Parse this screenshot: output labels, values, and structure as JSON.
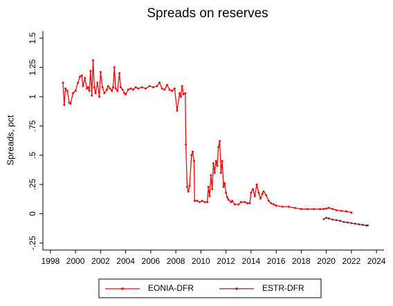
{
  "chart_data": {
    "type": "line",
    "title": "Spreads on reserves",
    "y_label": "Spreads, pct",
    "xlim": [
      1997.4,
      2024.6
    ],
    "ylim": [
      -0.31,
      1.56
    ],
    "xticks": [
      1998,
      2000,
      2002,
      2004,
      2006,
      2008,
      2010,
      2012,
      2014,
      2016,
      2018,
      2020,
      2022,
      2024
    ],
    "yticks": [
      {
        "value": -0.25,
        "label": "-.25"
      },
      0,
      {
        "value": 0.25,
        "label": ".25"
      },
      {
        "value": 0.5,
        "label": ".5"
      },
      {
        "value": 0.75,
        "label": ".75"
      },
      1,
      1.25,
      1.5
    ],
    "series": [
      {
        "name": "EONIA-DFR",
        "color": "#ff0000",
        "x": [
          1999.0,
          1999.1,
          1999.2,
          1999.35,
          1999.5,
          1999.6,
          1999.8,
          2000.0,
          2000.2,
          2000.35,
          2000.5,
          2000.6,
          2000.75,
          2000.9,
          2001.0,
          2001.1,
          2001.2,
          2001.3,
          2001.4,
          2001.5,
          2001.6,
          2001.75,
          2001.9,
          2002.0,
          2002.15,
          2002.3,
          2002.5,
          2002.6,
          2002.75,
          2002.9,
          2003.0,
          2003.1,
          2003.2,
          2003.35,
          2003.5,
          2003.6,
          2003.75,
          2003.9,
          2004.0,
          2004.2,
          2004.4,
          2004.6,
          2004.8,
          2005.0,
          2005.3,
          2005.6,
          2005.9,
          2006.2,
          2006.5,
          2006.7,
          2006.9,
          2007.1,
          2007.3,
          2007.5,
          2007.7,
          2007.9,
          2008.1,
          2008.3,
          2008.4,
          2008.5,
          2008.6,
          2008.75,
          2008.8,
          2008.9,
          2009.0,
          2009.1,
          2009.25,
          2009.35,
          2009.45,
          2009.5,
          2009.7,
          2009.9,
          2010.1,
          2010.3,
          2010.5,
          2010.6,
          2010.7,
          2010.8,
          2010.9,
          2011.0,
          2011.1,
          2011.2,
          2011.3,
          2011.4,
          2011.5,
          2011.6,
          2011.7,
          2011.8,
          2011.9,
          2012.0,
          2012.1,
          2012.2,
          2012.4,
          2012.5,
          2012.7,
          2013.0,
          2013.2,
          2013.5,
          2013.7,
          2013.9,
          2014.0,
          2014.15,
          2014.3,
          2014.45,
          2014.6,
          2014.75,
          2014.9,
          2015.0,
          2015.2,
          2015.4,
          2015.6,
          2015.8,
          2016.0,
          2016.5,
          2017.0,
          2017.5,
          2018.0,
          2018.5,
          2019.0,
          2019.5,
          2019.8,
          2020.0,
          2020.2,
          2020.5,
          2020.8,
          2021.2,
          2021.6,
          2022.0
        ],
        "values": [
          1.12,
          0.93,
          1.07,
          1.05,
          0.95,
          0.94,
          1.03,
          1.05,
          1.12,
          1.17,
          1.18,
          1.09,
          1.16,
          1.07,
          1.08,
          1.05,
          1.22,
          1.01,
          1.31,
          1.08,
          1.03,
          1.12,
          1.0,
          1.21,
          1.08,
          1.03,
          1.06,
          1.09,
          1.07,
          1.05,
          1.08,
          1.25,
          1.07,
          1.05,
          1.2,
          1.08,
          1.06,
          1.03,
          1.02,
          1.06,
          1.07,
          1.06,
          1.08,
          1.07,
          1.08,
          1.07,
          1.09,
          1.08,
          1.09,
          1.12,
          1.07,
          1.06,
          1.1,
          1.06,
          1.05,
          1.07,
          0.88,
          1.03,
          1.0,
          1.09,
          1.02,
          1.03,
          0.59,
          0.23,
          0.19,
          0.24,
          0.5,
          0.53,
          0.45,
          0.11,
          0.11,
          0.1,
          0.11,
          0.1,
          0.1,
          0.23,
          0.15,
          0.33,
          0.21,
          0.43,
          0.35,
          0.45,
          0.41,
          0.57,
          0.62,
          0.35,
          0.45,
          0.23,
          0.26,
          0.18,
          0.14,
          0.12,
          0.1,
          0.11,
          0.08,
          0.08,
          0.1,
          0.1,
          0.09,
          0.09,
          0.18,
          0.21,
          0.15,
          0.25,
          0.18,
          0.13,
          0.17,
          0.19,
          0.16,
          0.11,
          0.09,
          0.08,
          0.07,
          0.06,
          0.06,
          0.05,
          0.04,
          0.04,
          0.04,
          0.04,
          0.04,
          0.045,
          0.05,
          0.04,
          0.03,
          0.025,
          0.02,
          0.01
        ]
      },
      {
        "name": "ESTR-DFR",
        "color": "#8b2332",
        "x": [
          2019.8,
          2020.0,
          2020.2,
          2020.5,
          2020.8,
          2021.1,
          2021.4,
          2021.7,
          2022.0,
          2022.3,
          2022.6,
          2022.9,
          2023.2,
          2023.3
        ],
        "values": [
          -0.045,
          -0.035,
          -0.04,
          -0.05,
          -0.055,
          -0.06,
          -0.07,
          -0.075,
          -0.08,
          -0.085,
          -0.09,
          -0.095,
          -0.1,
          -0.1
        ]
      }
    ]
  }
}
